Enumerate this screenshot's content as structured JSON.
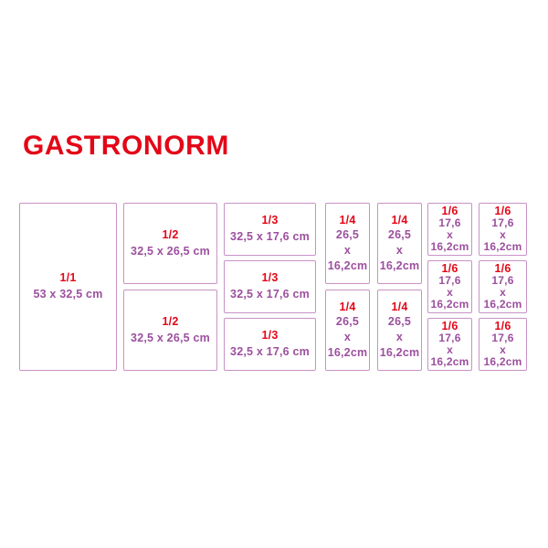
{
  "title": "GASTRONORM",
  "colors": {
    "title_red": "#e30617",
    "label_red": "#e30617",
    "size_purple": "#9c4f9e",
    "border_purple": "#c892c6"
  },
  "columns": [
    {
      "name": "1/1",
      "boxes": [
        {
          "label": "1/1",
          "size_lines": [
            "53 x 32,5 cm"
          ]
        }
      ]
    },
    {
      "name": "1/2",
      "boxes": [
        {
          "label": "1/2",
          "size_lines": [
            "32,5 x 26,5 cm"
          ]
        },
        {
          "label": "1/2",
          "size_lines": [
            "32,5 x 26,5 cm"
          ]
        }
      ]
    },
    {
      "name": "1/3",
      "boxes": [
        {
          "label": "1/3",
          "size_lines": [
            "32,5 x 17,6 cm"
          ]
        },
        {
          "label": "1/3",
          "size_lines": [
            "32,5 x 17,6 cm"
          ]
        },
        {
          "label": "1/3",
          "size_lines": [
            "32,5 x 17,6 cm"
          ]
        }
      ]
    },
    {
      "name": "1/4",
      "boxes": [
        {
          "label": "1/4",
          "size_lines": [
            "26,5",
            "x",
            "16,2cm"
          ]
        },
        {
          "label": "1/4",
          "size_lines": [
            "26,5",
            "x",
            "16,2cm"
          ]
        },
        {
          "label": "1/4",
          "size_lines": [
            "26,5",
            "x",
            "16,2cm"
          ]
        },
        {
          "label": "1/4",
          "size_lines": [
            "26,5",
            "x",
            "16,2cm"
          ]
        }
      ]
    },
    {
      "name": "1/6",
      "boxes": [
        {
          "label": "1/6",
          "size_lines": [
            "17,6",
            "x",
            "16,2cm"
          ]
        },
        {
          "label": "1/6",
          "size_lines": [
            "17,6",
            "x",
            "16,2cm"
          ]
        },
        {
          "label": "1/6",
          "size_lines": [
            "17,6",
            "x",
            "16,2cm"
          ]
        },
        {
          "label": "1/6",
          "size_lines": [
            "17,6",
            "x",
            "16,2cm"
          ]
        },
        {
          "label": "1/6",
          "size_lines": [
            "17,6",
            "x",
            "16,2cm"
          ]
        },
        {
          "label": "1/6",
          "size_lines": [
            "17,6",
            "x",
            "16,2cm"
          ]
        }
      ]
    }
  ]
}
